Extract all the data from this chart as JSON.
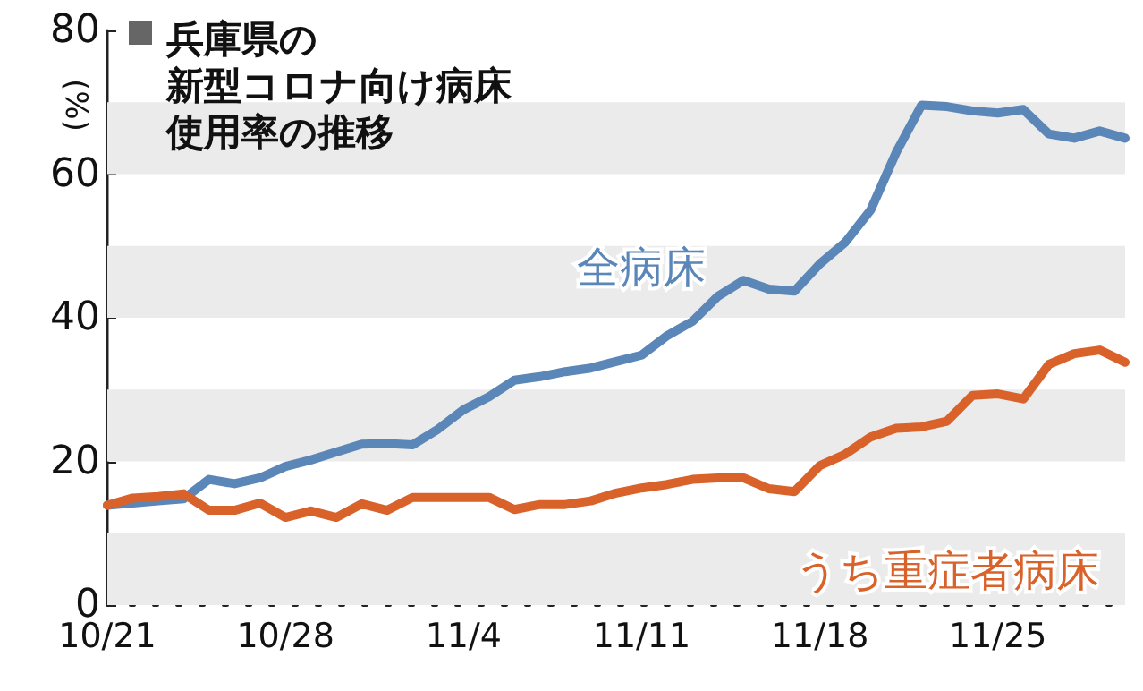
{
  "chart_data": {
    "type": "line",
    "title": "兵庫県の新型コロナ向け病床使用率の推移",
    "ylabel": "(%)",
    "categories": [
      "10/21",
      null,
      null,
      null,
      null,
      null,
      null,
      "10/28",
      null,
      null,
      null,
      null,
      null,
      null,
      "11/4",
      null,
      null,
      null,
      null,
      null,
      null,
      "11/11",
      null,
      null,
      null,
      null,
      null,
      null,
      "11/18",
      null,
      null,
      null,
      null,
      null,
      null,
      "11/25",
      null,
      null,
      null,
      null,
      null
    ],
    "series": [
      {
        "name": "全病床",
        "color": "#5b87b8",
        "values": [
          13.9,
          14.2,
          14.5,
          14.8,
          17.5,
          16.9,
          17.7,
          19.3,
          20.2,
          21.3,
          22.4,
          22.5,
          22.3,
          24.5,
          27.2,
          29,
          31.3,
          31.8,
          32.5,
          33,
          33.9,
          34.8,
          37.5,
          39.5,
          43,
          45.2,
          44,
          43.7,
          47.5,
          50.5,
          55,
          63,
          69.6,
          69.4,
          68.8,
          68.5,
          69,
          65.6,
          65,
          66,
          65
        ]
      },
      {
        "name": "うち重症者病床",
        "color": "#d9622b",
        "values": [
          13.9,
          14.9,
          15.1,
          15.5,
          13.2,
          13.2,
          14.2,
          12.2,
          13.1,
          12.2,
          14.1,
          13.2,
          15,
          15,
          15,
          15,
          13.3,
          14,
          14,
          14.5,
          15.6,
          16.3,
          16.8,
          17.5,
          17.7,
          17.7,
          16.2,
          15.8,
          19.4,
          21,
          23.4,
          24.6,
          24.8,
          25.6,
          29.2,
          29.4,
          28.7,
          33.5,
          35,
          35.5,
          33.8
        ]
      }
    ],
    "ylim": [
      0,
      80
    ],
    "yticks": [
      0,
      20,
      40,
      60,
      80
    ],
    "bands": [
      {
        "axis": "y",
        "from": 0,
        "to": 10,
        "color": "#ebebeb"
      },
      {
        "axis": "y",
        "from": 20,
        "to": 30,
        "color": "#ebebeb"
      },
      {
        "axis": "y",
        "from": 40,
        "to": 50,
        "color": "#ebebeb"
      },
      {
        "axis": "y",
        "from": 60,
        "to": 70,
        "color": "#ebebeb"
      }
    ],
    "marker": "none",
    "line_style": "solid"
  }
}
